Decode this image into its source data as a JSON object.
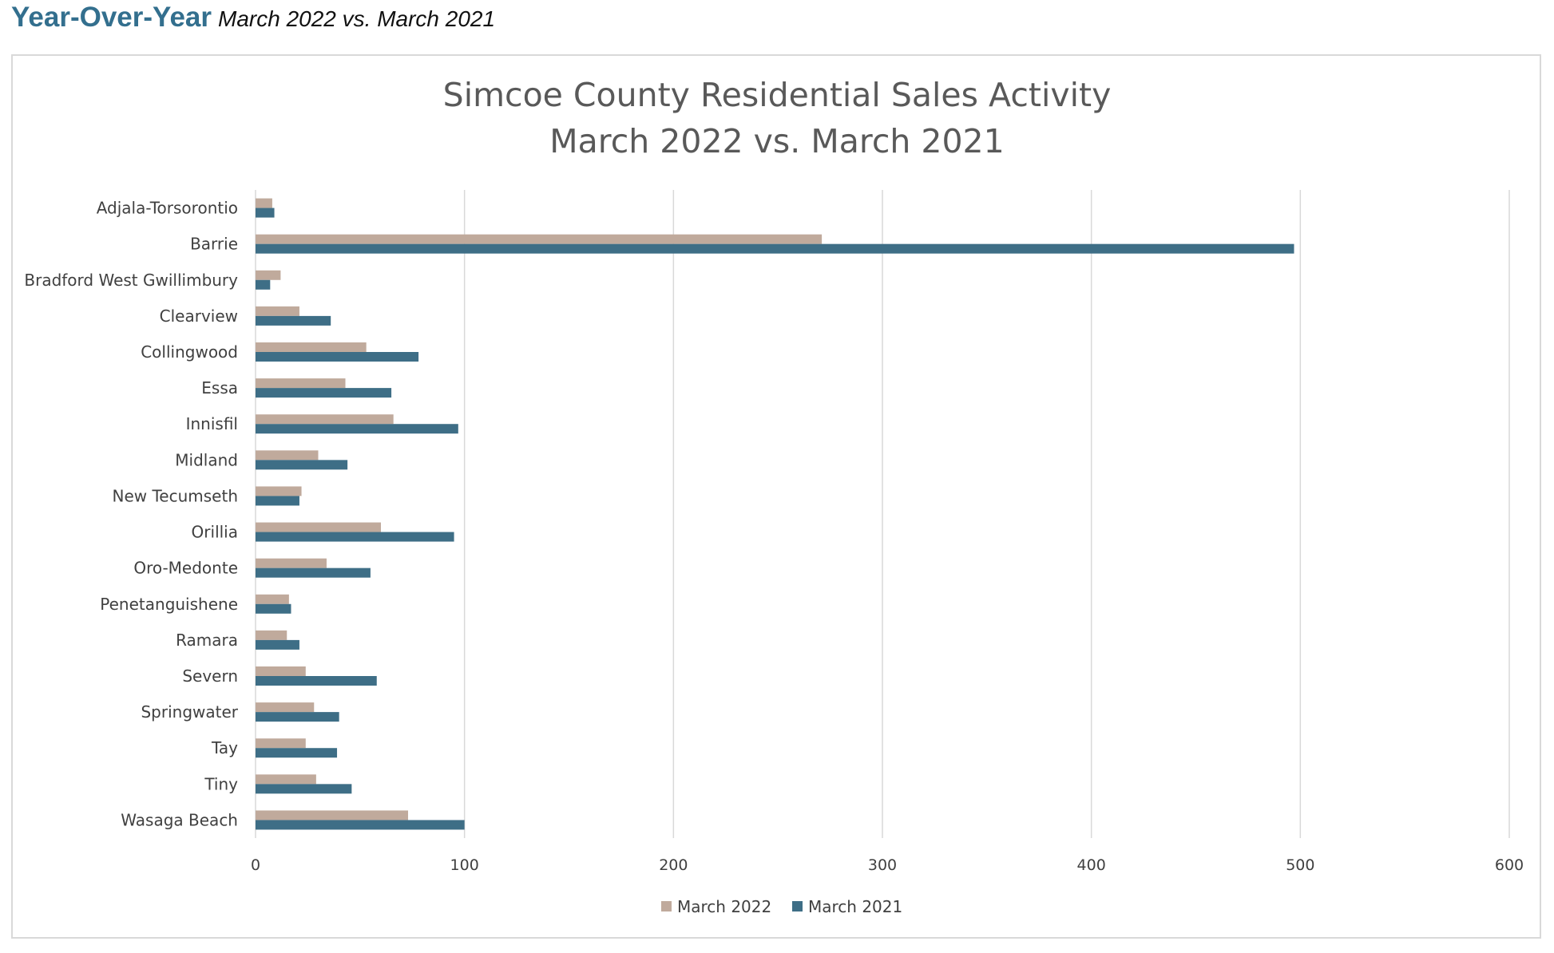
{
  "header": {
    "title": "Year-Over-Year",
    "subtitle": "March 2022 vs. March 2021"
  },
  "chart_data": {
    "type": "bar",
    "orientation": "horizontal",
    "title": "Simcoe County Residential Sales Activity",
    "subtitle": "March 2022 vs. March 2021",
    "xlim": [
      0,
      600
    ],
    "xticks": [
      0,
      100,
      200,
      300,
      400,
      500,
      600
    ],
    "grid": true,
    "legend_position": "bottom",
    "categories": [
      "Adjala-Torsorontio",
      "Barrie",
      "Bradford West Gwillimbury",
      "Clearview",
      "Collingwood",
      "Essa",
      "Innisfil",
      "Midland",
      "New Tecumseth",
      "Orillia",
      "Oro-Medonte",
      "Penetanguishene",
      "Ramara",
      "Severn",
      "Springwater",
      "Tay",
      "Tiny",
      "Wasaga Beach"
    ],
    "series": [
      {
        "name": "March 2022",
        "color": "#c0aa9c",
        "values": [
          8,
          271,
          12,
          21,
          53,
          43,
          66,
          30,
          22,
          60,
          34,
          16,
          15,
          24,
          28,
          24,
          29,
          73
        ]
      },
      {
        "name": "March 2021",
        "color": "#3e6e86",
        "values": [
          9,
          497,
          7,
          36,
          78,
          65,
          97,
          44,
          21,
          95,
          55,
          17,
          21,
          58,
          40,
          39,
          46,
          100
        ]
      }
    ]
  },
  "colors": {
    "header": "#336f8e",
    "gridline": "#d9d9d9",
    "frame": "#d9d9d9"
  }
}
